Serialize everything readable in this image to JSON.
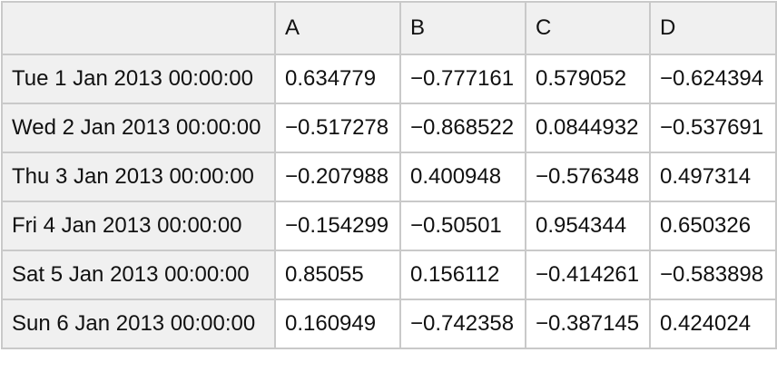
{
  "table": {
    "corner_label": "",
    "columns": [
      "A",
      "B",
      "C",
      "D"
    ],
    "rows": [
      {
        "label": "Tue 1 Jan 2013 00:00:00",
        "values": [
          "0.634779",
          "−0.777161",
          "0.579052",
          "−0.624394"
        ]
      },
      {
        "label": "Wed 2 Jan 2013 00:00:00",
        "values": [
          "−0.517278",
          "−0.868522",
          "0.0844932",
          "−0.537691"
        ]
      },
      {
        "label": "Thu 3 Jan 2013 00:00:00",
        "values": [
          "−0.207988",
          "0.400948",
          "−0.576348",
          "0.497314"
        ]
      },
      {
        "label": "Fri 4 Jan 2013 00:00:00",
        "values": [
          "−0.154299",
          "−0.50501",
          "0.954344",
          "0.650326"
        ]
      },
      {
        "label": "Sat 5 Jan 2013 00:00:00",
        "values": [
          "0.85055",
          "0.156112",
          "−0.414261",
          "−0.583898"
        ]
      },
      {
        "label": "Sun 6 Jan 2013 00:00:00",
        "values": [
          "0.160949",
          "−0.742358",
          "−0.387145",
          "0.424024"
        ]
      }
    ],
    "colors": {
      "header_bg": "#f0f0f0",
      "cell_bg": "#ffffff",
      "border": "#c9c9c9",
      "text": "#111111"
    }
  },
  "chart_data": {
    "type": "table",
    "columns": [
      "",
      "A",
      "B",
      "C",
      "D"
    ],
    "rows": [
      [
        "Tue 1 Jan 2013 00:00:00",
        0.634779,
        -0.777161,
        0.579052,
        -0.624394
      ],
      [
        "Wed 2 Jan 2013 00:00:00",
        -0.517278,
        -0.868522,
        0.0844932,
        -0.537691
      ],
      [
        "Thu 3 Jan 2013 00:00:00",
        -0.207988,
        0.400948,
        -0.576348,
        0.497314
      ],
      [
        "Fri 4 Jan 2013 00:00:00",
        -0.154299,
        -0.50501,
        0.954344,
        0.650326
      ],
      [
        "Sat 5 Jan 2013 00:00:00",
        0.85055,
        0.156112,
        -0.414261,
        -0.583898
      ],
      [
        "Sun 6 Jan 2013 00:00:00",
        0.160949,
        -0.742358,
        -0.387145,
        0.424024
      ]
    ],
    "title": "",
    "notes": "DataFrame-style table: datetime index rows, float columns A-D"
  }
}
